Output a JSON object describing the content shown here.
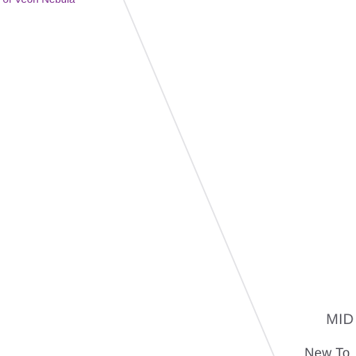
{
  "top_link": {
    "text": "of Veon Nebula"
  },
  "mid_label": {
    "text": "MID"
  },
  "bottom_label": {
    "text": "New To"
  },
  "colors": {
    "link": "#7b2a8c",
    "line": "#e3e3e6",
    "label": "#5b5b63"
  }
}
